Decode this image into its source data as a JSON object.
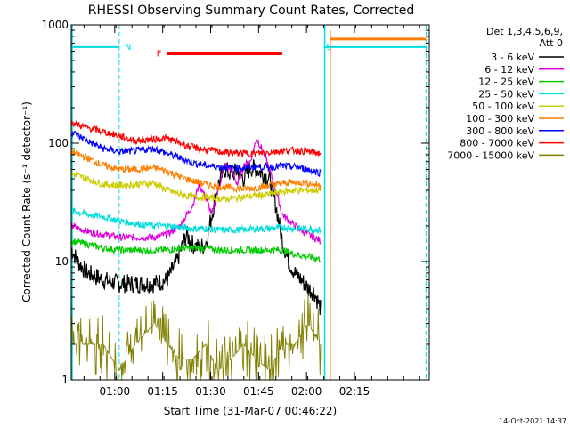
{
  "chart_data": {
    "type": "line",
    "title": "RHESSI Observing Summary Count Rates, Corrected",
    "xlabel": "Start Time (31-Mar-07 00:46:22)",
    "ylabel": "Corrected Count Rate (s⁻¹ detector⁻¹)",
    "x_unit": "minutes after 00:46:22",
    "xlim": [
      0,
      112
    ],
    "ylim": [
      1,
      1000
    ],
    "yscale": "log",
    "x_ticks": [
      {
        "value": 13.6,
        "label": "01:00"
      },
      {
        "value": 28.6,
        "label": "01:15"
      },
      {
        "value": 43.6,
        "label": "01:30"
      },
      {
        "value": 58.6,
        "label": "01:45"
      },
      {
        "value": 73.6,
        "label": "02:00"
      },
      {
        "value": 88.6,
        "label": "02:15"
      }
    ],
    "y_ticks": [
      {
        "value": 1,
        "label": "1"
      },
      {
        "value": 10,
        "label": "10"
      },
      {
        "value": 100,
        "label": "100"
      },
      {
        "value": 1000,
        "label": "1000"
      }
    ],
    "legend": {
      "placement": "top-right",
      "title_line1": "Det 1,3,4,5,6,9,",
      "title_line2": "Att 0"
    },
    "series": [
      {
        "name": "3 - 6 keV",
        "color": "#000000",
        "x": [
          0,
          2,
          5,
          10,
          15,
          20,
          26,
          30,
          33,
          36,
          38,
          40,
          42,
          44,
          46,
          48,
          50,
          52,
          54,
          56,
          58,
          60,
          62,
          64,
          66,
          68,
          70,
          72,
          74,
          76,
          78
        ],
        "y": [
          13,
          10,
          8,
          7,
          6.5,
          6.5,
          6.5,
          7,
          10,
          17,
          14,
          13,
          14,
          25,
          45,
          60,
          55,
          58,
          50,
          62,
          60,
          55,
          50,
          30,
          15,
          10,
          8,
          7,
          6,
          5.5,
          4
        ]
      },
      {
        "name": "6 - 12 keV",
        "color": "#dd00dd",
        "x": [
          0,
          5,
          10,
          15,
          20,
          26,
          30,
          34,
          38,
          40,
          42,
          44,
          46,
          48,
          50,
          52,
          54,
          56,
          58,
          60,
          62,
          64,
          66,
          70,
          74,
          78
        ],
        "y": [
          20,
          18,
          17,
          16,
          16,
          16,
          17,
          20,
          30,
          45,
          35,
          25,
          40,
          65,
          60,
          45,
          65,
          70,
          110,
          85,
          60,
          40,
          25,
          20,
          17,
          15
        ]
      },
      {
        "name": "12 - 25 keV",
        "color": "#00cc00",
        "x": [
          0,
          5,
          10,
          15,
          20,
          26,
          30,
          34,
          38,
          42,
          46,
          50,
          54,
          58,
          62,
          66,
          70,
          74,
          78
        ],
        "y": [
          15,
          14,
          13,
          12.5,
          12.5,
          12.5,
          12.5,
          13,
          13,
          13,
          12.5,
          12.5,
          12.5,
          12.5,
          12.5,
          12.5,
          11.5,
          11,
          10.5
        ]
      },
      {
        "name": "25 - 50 keV",
        "color": "#00dddd",
        "x": [
          0,
          5,
          10,
          15,
          20,
          26,
          30,
          34,
          38,
          42,
          46,
          50,
          54,
          58,
          62,
          66,
          70,
          74,
          78
        ],
        "y": [
          27,
          25,
          24,
          22,
          21,
          20,
          20,
          19.5,
          19,
          19,
          18.5,
          18.5,
          18.5,
          19,
          19,
          19.5,
          19,
          19,
          18.5
        ]
      },
      {
        "name": "50 - 100 keV",
        "color": "#cccc00",
        "x": [
          0,
          5,
          10,
          15,
          20,
          26,
          30,
          34,
          38,
          42,
          46,
          50,
          54,
          58,
          62,
          66,
          70,
          74,
          78
        ],
        "y": [
          55,
          50,
          45,
          44,
          45,
          46,
          40,
          37,
          35,
          35,
          34,
          34,
          35,
          36,
          37,
          39,
          40,
          40,
          40
        ]
      },
      {
        "name": "100 - 300 keV",
        "color": "#ff8000",
        "x": [
          0,
          5,
          10,
          15,
          20,
          26,
          30,
          34,
          38,
          42,
          46,
          50,
          54,
          58,
          62,
          66,
          70,
          74,
          78
        ],
        "y": [
          85,
          75,
          65,
          60,
          60,
          62,
          58,
          52,
          48,
          45,
          43,
          42,
          41,
          42,
          44,
          46,
          47,
          46,
          44
        ]
      },
      {
        "name": "300 - 800 keV",
        "color": "#0000ff",
        "x": [
          0,
          5,
          10,
          15,
          20,
          26,
          30,
          34,
          38,
          42,
          46,
          50,
          54,
          58,
          62,
          66,
          70,
          74,
          78
        ],
        "y": [
          125,
          105,
          90,
          85,
          86,
          90,
          82,
          75,
          68,
          65,
          63,
          62,
          62,
          63,
          63,
          64,
          63,
          60,
          56
        ]
      },
      {
        "name": "800 - 7000 keV",
        "color": "#ff0000",
        "x": [
          0,
          5,
          10,
          15,
          20,
          26,
          30,
          34,
          38,
          42,
          46,
          50,
          54,
          58,
          62,
          66,
          70,
          74,
          78
        ],
        "y": [
          150,
          135,
          125,
          115,
          105,
          108,
          110,
          100,
          92,
          88,
          85,
          83,
          82,
          82,
          84,
          86,
          87,
          85,
          82
        ]
      },
      {
        "name": "7000 - 15000 keV",
        "color": "#808000",
        "x": [
          0,
          5,
          10,
          15,
          20,
          26,
          30,
          34,
          38,
          42,
          46,
          50,
          54,
          58,
          62,
          66,
          70,
          74,
          78
        ],
        "y": [
          2,
          2,
          2,
          1.2,
          2,
          3,
          2,
          1.5,
          1.5,
          2,
          1.2,
          1.5,
          2,
          1.5,
          1.2,
          2,
          2,
          3,
          2
        ]
      }
    ],
    "annotations": [
      {
        "label": "N",
        "kind": "night",
        "color": "#00dddd",
        "x_start": 0,
        "x_end": 15,
        "level": 650
      },
      {
        "label": "F",
        "kind": "flare",
        "color": "#ff0000",
        "x_start": 30,
        "x_end": 66,
        "level": 570
      },
      {
        "label": "S",
        "kind": "saa",
        "color": "#00dddd",
        "x_start": 79,
        "x_end": 111,
        "level": 650
      },
      {
        "label": "",
        "kind": "attenuator",
        "color": "#ff8000",
        "x_start": 81,
        "x_end": 111,
        "level": 760
      }
    ]
  },
  "footer": {
    "timestamp": "14-Oct-2021 14:37"
  }
}
